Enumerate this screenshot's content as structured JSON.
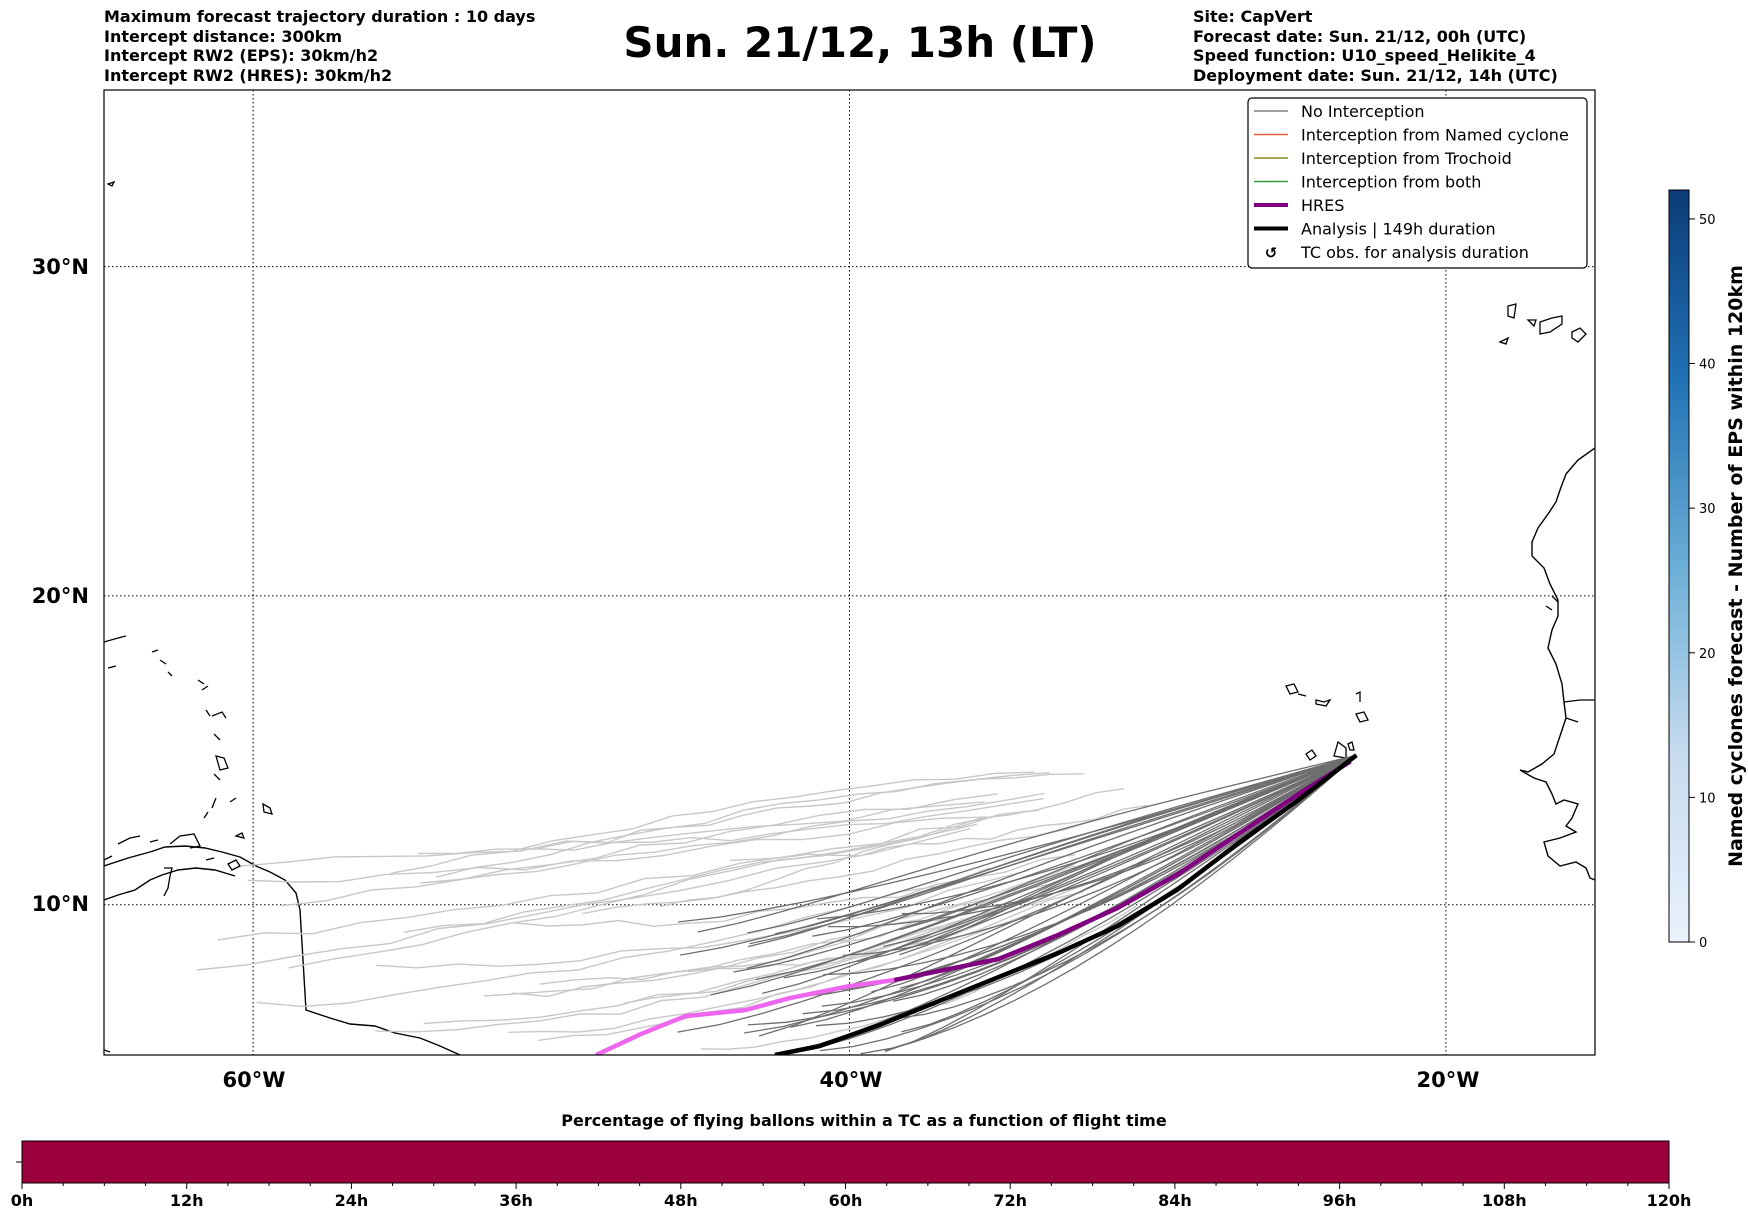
{
  "header_left": [
    "Maximum forecast trajectory duration : 10 days",
    "Intercept distance: 300km",
    "Intercept RW2 (EPS):  30km/h2",
    "Intercept RW2 (HRES): 30km/h2"
  ],
  "header_right": [
    "Site: CapVert",
    "Forecast date: Sun. 21/12, 00h (UTC)",
    "Speed function: U10_speed_Helikite_4",
    "Deployment date: Sun. 21/12, 14h (UTC)"
  ],
  "title": "Sun. 21/12, 13h (LT)",
  "map": {
    "lon_range": [
      -65,
      -15
    ],
    "lat_range": [
      5,
      35
    ],
    "lat_ticks": [
      {
        "v": 10,
        "label": "10°N"
      },
      {
        "v": 20,
        "label": "20°N"
      },
      {
        "v": 30,
        "label": "30°N"
      }
    ],
    "lon_ticks": [
      {
        "v": -60,
        "label": "60°W"
      },
      {
        "v": -40,
        "label": "40°W"
      },
      {
        "v": -20,
        "label": "20°W"
      }
    ],
    "grid": "dotted"
  },
  "legend": [
    {
      "label": "No Interception",
      "color": "#808080",
      "kind": "thin"
    },
    {
      "label": "Interception from Named cyclone",
      "color": "#e8603c",
      "kind": "thin"
    },
    {
      "label": "Interception from Trochoid",
      "color": "#8c8c1a",
      "kind": "thin"
    },
    {
      "label": "Interception from both",
      "color": "#2e9a3c",
      "kind": "thin"
    },
    {
      "label": "HRES",
      "color": "#800080",
      "kind": "thick"
    },
    {
      "label": "Analysis | 149h duration",
      "color": "#000000",
      "kind": "thick"
    },
    {
      "label": "TC obs. for analysis duration",
      "color": "#000000",
      "kind": "marker"
    }
  ],
  "trajectories": {
    "start": [
      -23.0,
      14.9
    ],
    "analysis": [
      [
        -23.0,
        14.9
      ],
      [
        -25,
        13.4
      ],
      [
        -27,
        12.0
      ],
      [
        -29,
        10.5
      ],
      [
        -31,
        9.3
      ],
      [
        -33,
        8.4
      ],
      [
        -35,
        7.6
      ],
      [
        -37,
        6.8
      ],
      [
        -39,
        6.0
      ],
      [
        -41,
        5.3
      ],
      [
        -42.5,
        5.0
      ]
    ],
    "hres": [
      [
        -23.2,
        14.7
      ],
      [
        -25,
        13.6
      ],
      [
        -27,
        12.3
      ],
      [
        -29,
        11.0
      ],
      [
        -31,
        9.9
      ],
      [
        -33,
        9.0
      ],
      [
        -35,
        8.2
      ],
      [
        -37,
        7.8
      ],
      [
        -38.5,
        7.5
      ],
      [
        -40,
        7.3
      ],
      [
        -42,
        6.9
      ],
      [
        -43.5,
        6.5
      ],
      [
        -45.5,
        6.3
      ],
      [
        -47,
        5.7
      ],
      [
        -48.5,
        5.0
      ]
    ],
    "hres_colors": {
      "early": "#800080",
      "late": "#ee66ee"
    }
  },
  "colorbar": {
    "label": "Named cyclones forecast - Number of EPS within 120km",
    "ticks": [
      0,
      10,
      20,
      30,
      40,
      50
    ],
    "max": 52,
    "color_low": "#eaf2fb",
    "color_high": "#0b3c78"
  },
  "bottom_bar": {
    "title": "Percentage of flying ballons within a TC as a function of flight time",
    "ticks": [
      "0h",
      "12h",
      "24h",
      "36h",
      "48h",
      "60h",
      "72h",
      "84h",
      "96h",
      "108h",
      "120h"
    ],
    "fill_color": "#9b003c"
  }
}
